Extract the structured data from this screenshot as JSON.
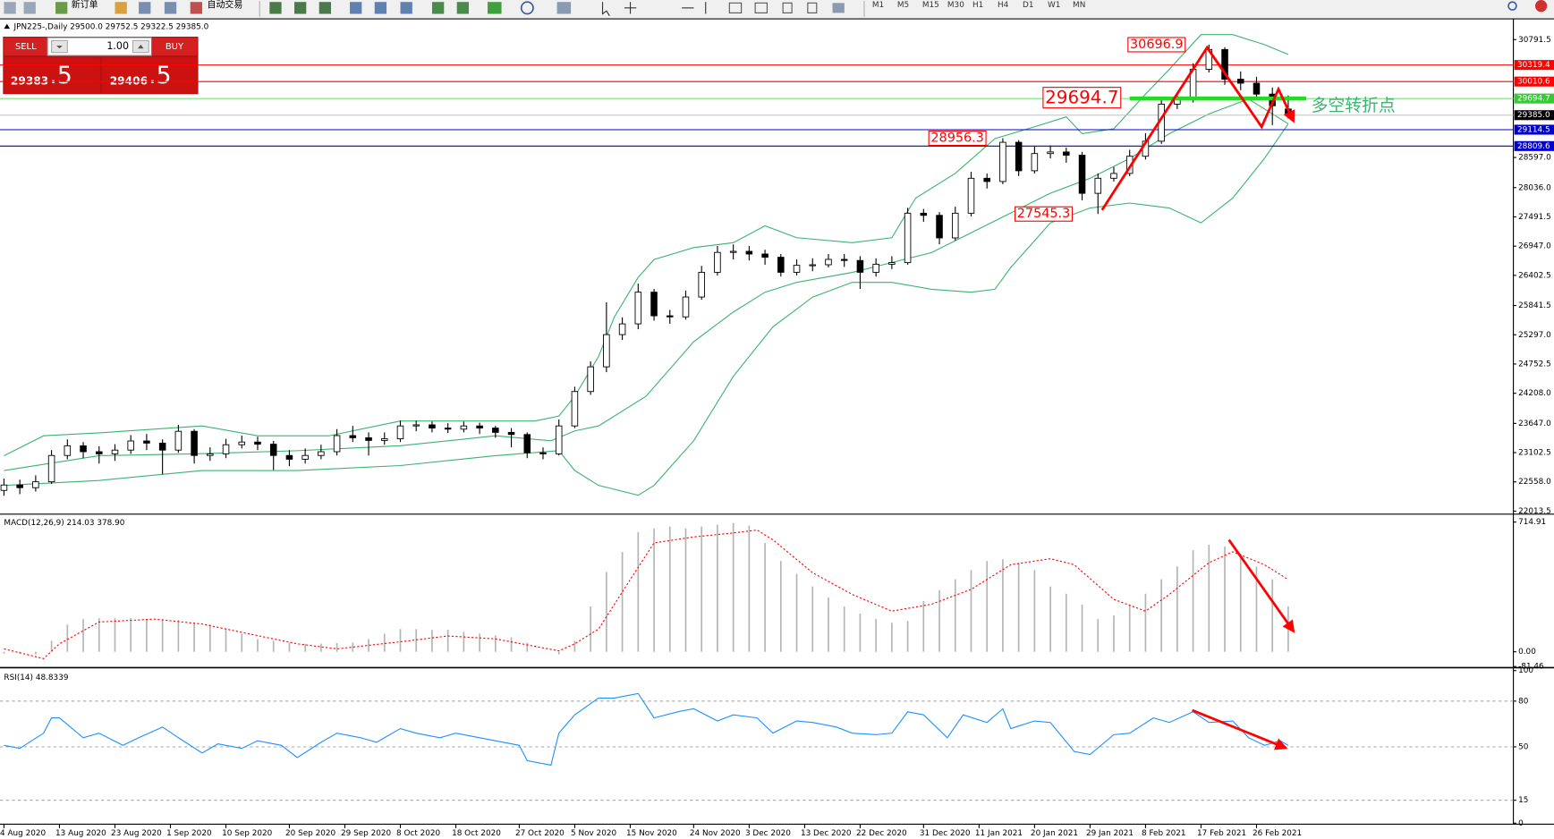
{
  "toolbar": {
    "items": [
      "新订单",
      "自动交易"
    ],
    "timeframes": [
      "M1",
      "M5",
      "M15",
      "M30",
      "H1",
      "H4",
      "D1",
      "W1",
      "MN"
    ]
  },
  "trade_panel": {
    "sell": "SELL",
    "buy": "BUY",
    "volume": "1.00",
    "sell_price": "29383",
    "sell_fraction": ".5",
    "buy_price": "29406",
    "buy_fraction": ".5"
  },
  "chart_data": [
    {
      "type": "candlestick",
      "title": "JPN225-,Daily  29500.0 29752.5 29322.5 29385.0",
      "xlim": [
        -0.5,
        190.4
      ],
      "ylim": [
        21977,
        31160
      ],
      "yticks": [
        30791.5,
        {
          "value": 28597,
          "label": "28597.0"
        },
        {
          "value": 28036,
          "label": "28036.0"
        },
        27491.5,
        {
          "value": 26947,
          "label": "26947.0"
        },
        26402.5,
        25841.5,
        {
          "value": 25297,
          "label": "25297.0"
        },
        24752.5,
        {
          "value": 24208,
          "label": "24208.0"
        },
        {
          "value": 23647,
          "label": "23647.0"
        },
        23102.5,
        {
          "value": 22558,
          "label": "22558.0"
        },
        22013.5
      ],
      "up_color": "#ffffff",
      "down_color": "#000000",
      "x": [
        0,
        2,
        4,
        6,
        8,
        10,
        12,
        14,
        16,
        18,
        20,
        22,
        24,
        26,
        28,
        30,
        32,
        34,
        36,
        38,
        40,
        42,
        44,
        46,
        48,
        50,
        52,
        54,
        56,
        58,
        60,
        62,
        64,
        66,
        68,
        70,
        72,
        74,
        76,
        78,
        80,
        82,
        84,
        86,
        88,
        90,
        92,
        94,
        96,
        98,
        100,
        102,
        104,
        106,
        108,
        110,
        112,
        114,
        116,
        118,
        120,
        122,
        124,
        126,
        128,
        130,
        132,
        134,
        136,
        138,
        140,
        142,
        144,
        146,
        148,
        150,
        152,
        154,
        156,
        158,
        160,
        162
      ],
      "open": [
        22400,
        22500,
        22450,
        22560,
        23050,
        23230,
        23120,
        23080,
        23150,
        23320,
        23280,
        23150,
        23500,
        23050,
        23080,
        23250,
        23300,
        23260,
        23050,
        22980,
        23050,
        23120,
        23420,
        23380,
        23330,
        23360,
        23600,
        23620,
        23560,
        23540,
        23600,
        23560,
        23480,
        23440,
        23100,
        23080,
        23600,
        24240,
        24700,
        25300,
        25500,
        26090,
        25650,
        25630,
        26000,
        26460,
        26830,
        26850,
        26800,
        26740,
        26460,
        26590,
        26600,
        26700,
        26680,
        26460,
        26610,
        26640,
        27560,
        27520,
        27100,
        27560,
        28210,
        28150,
        28880,
        28350,
        28670,
        28700,
        28640,
        27930,
        28210,
        28300,
        28620,
        28900,
        29590,
        29690,
        30238,
        30607,
        30054,
        29980,
        29777,
        29500
      ],
      "high": [
        22620,
        22600,
        22680,
        23150,
        23350,
        23300,
        23220,
        23260,
        23430,
        23450,
        23350,
        23620,
        23540,
        23200,
        23360,
        23420,
        23400,
        23320,
        23150,
        23180,
        23250,
        23540,
        23600,
        23480,
        23480,
        23700,
        23700,
        23680,
        23650,
        23680,
        23660,
        23600,
        23560,
        23480,
        23200,
        23720,
        24330,
        24800,
        25900,
        25620,
        26250,
        26150,
        25760,
        26120,
        26580,
        26950,
        26980,
        26950,
        26880,
        26800,
        26700,
        26720,
        26800,
        26800,
        26760,
        26720,
        26760,
        27660,
        27640,
        27580,
        27680,
        28330,
        28300,
        28956.3,
        28920,
        28800,
        28820,
        28780,
        28700,
        28300,
        28420,
        28740,
        29050,
        29700,
        29800,
        30350,
        30696.9,
        30650,
        30200,
        30100,
        29900,
        29752.5
      ],
      "low": [
        22300,
        22330,
        22380,
        22520,
        22980,
        23000,
        22900,
        22950,
        23080,
        23150,
        22700,
        23100,
        22900,
        22950,
        23000,
        23180,
        23150,
        22780,
        22850,
        22900,
        22980,
        23050,
        23300,
        23050,
        23250,
        23300,
        23500,
        23480,
        23470,
        23480,
        23450,
        23380,
        23200,
        23000,
        22980,
        23050,
        23560,
        24180,
        24600,
        25200,
        25400,
        25560,
        25500,
        25580,
        25950,
        26400,
        26700,
        26680,
        26600,
        26380,
        26400,
        26480,
        26550,
        26560,
        26150,
        26380,
        26520,
        26600,
        27400,
        26980,
        27050,
        27500,
        28020,
        28100,
        28250,
        28300,
        28580,
        28500,
        27800,
        27545.3,
        28150,
        28250,
        28560,
        28850,
        29500,
        29620,
        30180,
        29950,
        29850,
        29700,
        29200,
        29322.5
      ],
      "close": [
        22500,
        22450,
        22560,
        23050,
        23230,
        23120,
        23080,
        23150,
        23320,
        23280,
        23150,
        23500,
        23050,
        23080,
        23250,
        23300,
        23260,
        23050,
        22980,
        23050,
        23120,
        23420,
        23380,
        23330,
        23360,
        23600,
        23620,
        23560,
        23540,
        23600,
        23560,
        23480,
        23440,
        23100,
        23080,
        23600,
        24240,
        24700,
        25300,
        25500,
        26090,
        25650,
        25630,
        26000,
        26460,
        26830,
        26850,
        26800,
        26740,
        26460,
        26590,
        26600,
        26700,
        26680,
        26460,
        26610,
        26640,
        27560,
        27520,
        27100,
        27560,
        28210,
        28150,
        28880,
        28350,
        28670,
        28700,
        28640,
        27930,
        28210,
        28300,
        28620,
        28900,
        29590,
        29690,
        30238,
        30607,
        30054,
        29980,
        29777,
        29560,
        29385
      ],
      "bands": [
        {
          "color": "#3cb371",
          "x": [
            0,
            5,
            12,
            25,
            32,
            41,
            50,
            60,
            67,
            70,
            72,
            75,
            77,
            80,
            82,
            87,
            92,
            96,
            100,
            107,
            112,
            115,
            120,
            125,
            130,
            134,
            136,
            140,
            144,
            147,
            151,
            155,
            159,
            162
          ],
          "values": [
            23046,
            23416,
            23471,
            23600,
            23416,
            23416,
            23692,
            23692,
            23692,
            23784,
            24153,
            24891,
            25628,
            26366,
            26698,
            26919,
            27011,
            27325,
            27104,
            27011,
            27104,
            27841,
            28302,
            28948,
            29169,
            29353,
            29040,
            29132,
            29777,
            30238,
            30884,
            30884,
            30699,
            30515
          ]
        },
        {
          "color": "#3cb371",
          "x": [
            0,
            12,
            25,
            37,
            50,
            62,
            69,
            72,
            75,
            81,
            87,
            92,
            96,
            100,
            107,
            112,
            117,
            122,
            127,
            132,
            137,
            142,
            147,
            152,
            157,
            162
          ],
          "values": [
            22770,
            23046,
            23083,
            23139,
            23231,
            23416,
            23323,
            23507,
            23600,
            24153,
            25167,
            25720,
            26089,
            26273,
            26458,
            26642,
            26827,
            27196,
            27564,
            27933,
            28210,
            28579,
            29040,
            29408,
            29685,
            29224
          ]
        },
        {
          "color": "#3cb371",
          "x": [
            0,
            12,
            25,
            37,
            50,
            62,
            70,
            72,
            75,
            80,
            82,
            87,
            92,
            97,
            102,
            107,
            112,
            117,
            122,
            125,
            127,
            132,
            137,
            142,
            147,
            151,
            155,
            159,
            162
          ],
          "values": [
            22493,
            22585,
            22770,
            22770,
            22862,
            23046,
            23139,
            22770,
            22493,
            22309,
            22493,
            23323,
            24522,
            25444,
            25997,
            26273,
            26273,
            26144,
            26089,
            26144,
            26550,
            27380,
            27657,
            27749,
            27657,
            27380,
            27841,
            28579,
            29224
          ]
        }
      ],
      "levels": {
        "values": [
          30319.4,
          30010.6,
          29694.7,
          29385,
          29114.5,
          28809.6
        ],
        "value_labels": [
          "30319.4",
          "30010.6",
          "29694.7",
          "29385.0",
          "29114.5",
          "28809.6"
        ],
        "line_colors": [
          "#ff0000",
          "#ff0000",
          "#7ee07e",
          "#c0c0c0",
          "#0000cd",
          "#0000cd"
        ],
        "label_colors": [
          "#ff0000",
          "#ff0000",
          "#33cc33",
          "#000000",
          "#0000cd",
          "#0000cd"
        ]
      },
      "annotations": [
        {
          "x": 152,
          "value": 30696.9
        },
        {
          "x": 142,
          "value": 29694.7
        },
        {
          "x": 126,
          "value": 28956.3
        },
        {
          "x": 138,
          "value": 27545.3
        }
      ],
      "annotation_color": "#ff0000",
      "pivot_label": "多空转折点",
      "pivot_color": "#3cb371"
    },
    {
      "type": "bar",
      "title": "MACD(12,26,9) 214.03 378.90",
      "xlim": [
        -0.5,
        190.4
      ],
      "ylim": [
        -82,
        748
      ],
      "yticks": [
        714.91,
        {
          "value": 0,
          "label": "0.00"
        },
        -81.46
      ],
      "color": "#b4b4b4",
      "x": [
        0,
        2,
        4,
        6,
        8,
        10,
        12,
        14,
        16,
        18,
        20,
        22,
        24,
        26,
        28,
        30,
        32,
        34,
        36,
        38,
        40,
        42,
        44,
        46,
        48,
        50,
        52,
        54,
        56,
        58,
        60,
        62,
        64,
        66,
        68,
        70,
        72,
        74,
        76,
        78,
        80,
        82,
        84,
        86,
        88,
        90,
        92,
        94,
        96,
        98,
        100,
        102,
        104,
        106,
        108,
        110,
        112,
        114,
        116,
        118,
        120,
        122,
        124,
        126,
        128,
        130,
        132,
        134,
        136,
        138,
        140,
        142,
        144,
        146,
        148,
        150,
        152,
        154,
        156,
        158,
        160,
        162
      ],
      "values": [
        -10,
        -10,
        -15,
        60,
        150,
        180,
        185,
        185,
        185,
        180,
        180,
        175,
        160,
        150,
        130,
        100,
        70,
        60,
        50,
        44,
        45,
        48,
        50,
        70,
        100,
        125,
        125,
        120,
        122,
        110,
        100,
        90,
        80,
        50,
        0,
        -15,
        60,
        250,
        440,
        550,
        660,
        680,
        690,
        680,
        690,
        700,
        710,
        695,
        600,
        500,
        430,
        360,
        300,
        250,
        210,
        180,
        160,
        170,
        280,
        340,
        400,
        450,
        500,
        510,
        490,
        450,
        360,
        320,
        260,
        180,
        200,
        260,
        320,
        400,
        470,
        560,
        590,
        580,
        540,
        470,
        400,
        250
      ],
      "signal": {
        "color": "#ff0000",
        "x": [
          0,
          5,
          7,
          12,
          19,
          25,
          31,
          37,
          42,
          50,
          56,
          62,
          70,
          72,
          75,
          79,
          82,
          87,
          92,
          95,
          97,
          102,
          107,
          112,
          117,
          122,
          127,
          132,
          135,
          140,
          144,
          147,
          152,
          155,
          159,
          162
        ],
        "values": [
          16,
          -38,
          44,
          164,
          180,
          153,
          98,
          44,
          16,
          55,
          87,
          71,
          5,
          44,
          125,
          398,
          600,
          633,
          655,
          671,
          617,
          436,
          316,
          224,
          262,
          344,
          480,
          513,
          480,
          289,
          224,
          316,
          491,
          551,
          480,
          398
        ]
      }
    },
    {
      "type": "line",
      "title": "RSI(14) 48.8339",
      "xlim": [
        -0.5,
        190.4
      ],
      "ylim": [
        0,
        100
      ],
      "yticks": [
        100,
        80,
        50,
        15,
        0
      ],
      "grid": true,
      "color": "#1e90ff",
      "x": [
        0,
        2,
        5,
        6,
        7,
        10,
        12,
        15,
        17,
        20,
        22,
        25,
        27,
        30,
        32,
        35,
        37,
        40,
        42,
        45,
        47,
        50,
        52,
        55,
        57,
        60,
        62,
        65,
        66,
        69,
        70,
        72,
        75,
        77,
        80,
        82,
        85,
        87,
        90,
        92,
        95,
        97,
        100,
        102,
        105,
        107,
        110,
        112,
        114,
        116,
        119,
        121,
        124,
        126,
        127,
        130,
        132,
        135,
        137,
        140,
        142,
        145,
        147,
        150,
        152,
        155,
        157,
        159,
        161,
        162
      ],
      "values": [
        51,
        49,
        59,
        69,
        69,
        56,
        59,
        51,
        56,
        63,
        56,
        46,
        52,
        49,
        54,
        51,
        43,
        53,
        59,
        56,
        53,
        62,
        59,
        56,
        59,
        56,
        54,
        51,
        41,
        38,
        59,
        71,
        82,
        82,
        85,
        69,
        73,
        75,
        67,
        71,
        69,
        59,
        67,
        66,
        63,
        59,
        58,
        59,
        73,
        71,
        56,
        71,
        66,
        75,
        62,
        67,
        66,
        47,
        45,
        58,
        59,
        69,
        66,
        73,
        66,
        67,
        56,
        51,
        54,
        51
      ],
      "xticks": [
        {
          "value": 0,
          "label": "4 Aug 2020"
        },
        {
          "value": 7,
          "label": "13 Aug 2020"
        },
        {
          "value": 14,
          "label": "23 Aug 2020"
        },
        {
          "value": 21,
          "label": "1 Sep 2020"
        },
        {
          "value": 28,
          "label": "10 Sep 2020"
        },
        {
          "value": 36,
          "label": "20 Sep 2020"
        },
        {
          "value": 43,
          "label": "29 Sep 2020"
        },
        {
          "value": 50,
          "label": "8 Oct 2020"
        },
        {
          "value": 57,
          "label": "18 Oct 2020"
        },
        {
          "value": 65,
          "label": "27 Oct 2020"
        },
        {
          "value": 72,
          "label": "5 Nov 2020"
        },
        {
          "value": 79,
          "label": "15 Nov 2020"
        },
        {
          "value": 87,
          "label": "24 Nov 2020"
        },
        {
          "value": 94,
          "label": "3 Dec 2020"
        },
        {
          "value": 101,
          "label": "13 Dec 2020"
        },
        {
          "value": 108,
          "label": "22 Dec 2020"
        },
        {
          "value": 116,
          "label": "31 Dec 2020"
        },
        {
          "value": 123,
          "label": "11 Jan 2021"
        },
        {
          "value": 130,
          "label": "20 Jan 2021"
        },
        {
          "value": 137,
          "label": "29 Jan 2021"
        },
        {
          "value": 144,
          "label": "8 Feb 2021"
        },
        {
          "value": 151,
          "label": "17 Feb 2021"
        },
        {
          "value": 158,
          "label": "26 Feb 2021"
        }
      ]
    }
  ]
}
